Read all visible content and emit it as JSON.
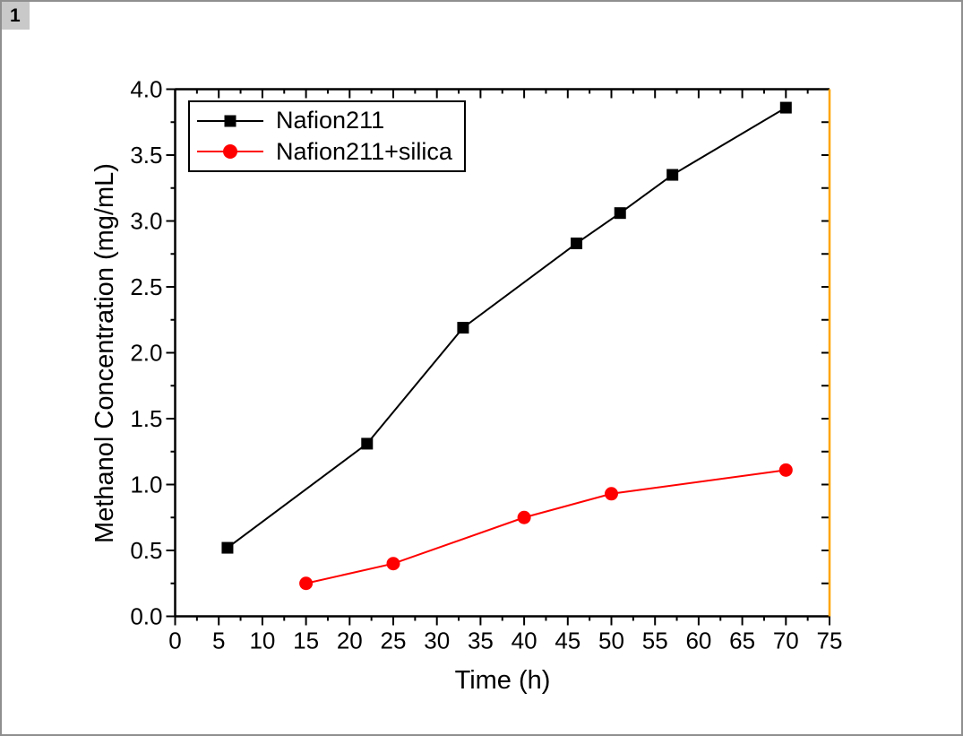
{
  "window": {
    "badge_label": "1"
  },
  "chart_data": {
    "type": "line",
    "title": "",
    "xlabel": "Time (h)",
    "ylabel": "Methanol Concentration (mg/mL)",
    "xlim": [
      0,
      75
    ],
    "ylim": [
      0.0,
      4.0
    ],
    "x_major_step": 5,
    "x_minor_step": 2.5,
    "y_major_step": 0.5,
    "y_minor_step": 0.25,
    "x_tick_labels": [
      "0",
      "5",
      "10",
      "15",
      "20",
      "25",
      "30",
      "35",
      "40",
      "45",
      "50",
      "55",
      "60",
      "65",
      "70",
      "75"
    ],
    "y_tick_labels": [
      "0.0",
      "0.5",
      "1.0",
      "1.5",
      "2.0",
      "2.5",
      "3.0",
      "3.5",
      "4.0"
    ],
    "grid": false,
    "legend_position": "top-left-inside",
    "axes": {
      "left_color": "#000000",
      "bottom_color": "#000000",
      "top_color": "#000000",
      "right_color": "#FFA500",
      "tick_color": "#000000"
    },
    "series": [
      {
        "name": "Nafion211",
        "color": "#000000",
        "marker": "square",
        "x": [
          6,
          22,
          33,
          46,
          51,
          57,
          70
        ],
        "y": [
          0.52,
          1.31,
          2.19,
          2.83,
          3.06,
          3.35,
          3.86
        ]
      },
      {
        "name": "Nafion211+silica",
        "color": "#FF0000",
        "marker": "circle",
        "x": [
          15,
          25,
          40,
          50,
          70
        ],
        "y": [
          0.25,
          0.4,
          0.75,
          0.93,
          1.11
        ]
      }
    ]
  }
}
